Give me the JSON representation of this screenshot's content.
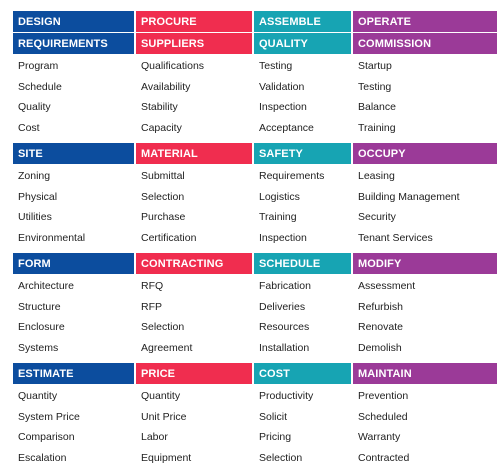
{
  "colors": {
    "design": "#0c4d9e",
    "procure": "#f02d4f",
    "assemble": "#17a4b3",
    "operate": "#9b3a98"
  },
  "columns": [
    {
      "color_key": "design",
      "blocks": [
        {
          "headers": [
            "DESIGN",
            "REQUIREMENTS"
          ],
          "items": [
            "Program",
            "Schedule",
            "Quality",
            "Cost"
          ]
        },
        {
          "headers": [
            "SITE"
          ],
          "items": [
            "Zoning",
            "Physical",
            "Utilities",
            "Environmental"
          ]
        },
        {
          "headers": [
            "FORM"
          ],
          "items": [
            "Architecture",
            "Structure",
            "Enclosure",
            "Systems"
          ]
        },
        {
          "headers": [
            "ESTIMATE"
          ],
          "items": [
            "Quantity",
            "System Price",
            "Comparison",
            "Escalation"
          ]
        }
      ]
    },
    {
      "color_key": "procure",
      "blocks": [
        {
          "headers": [
            "PROCURE",
            "SUPPLIERS"
          ],
          "items": [
            "Qualifications",
            "Availability",
            "Stability",
            "Capacity"
          ]
        },
        {
          "headers": [
            "MATERIAL"
          ],
          "items": [
            "Submittal",
            "Selection",
            "Purchase",
            "Certification"
          ]
        },
        {
          "headers": [
            "CONTRACTING"
          ],
          "items": [
            "RFQ",
            "RFP",
            "Selection",
            "Agreement"
          ]
        },
        {
          "headers": [
            "PRICE"
          ],
          "items": [
            "Quantity",
            "Unit Price",
            "Labor",
            "Equipment"
          ]
        }
      ]
    },
    {
      "color_key": "assemble",
      "blocks": [
        {
          "headers": [
            "ASSEMBLE",
            "QUALITY"
          ],
          "items": [
            "Testing",
            "Validation",
            "Inspection",
            "Acceptance"
          ]
        },
        {
          "headers": [
            "SAFETY"
          ],
          "items": [
            "Requirements",
            "Logistics",
            "Training",
            "Inspection"
          ]
        },
        {
          "headers": [
            "SCHEDULE"
          ],
          "items": [
            "Fabrication",
            "Deliveries",
            "Resources",
            "Installation"
          ]
        },
        {
          "headers": [
            "COST"
          ],
          "items": [
            "Productivity",
            "Solicit",
            "Pricing",
            "Selection"
          ]
        }
      ]
    },
    {
      "color_key": "operate",
      "blocks": [
        {
          "headers": [
            "OPERATE",
            "COMMISSION"
          ],
          "items": [
            "Startup",
            "Testing",
            "Balance",
            "Training"
          ]
        },
        {
          "headers": [
            "OCCUPY"
          ],
          "items": [
            "Leasing",
            "Building Management",
            "Security",
            "Tenant Services"
          ]
        },
        {
          "headers": [
            "MODIFY"
          ],
          "items": [
            "Assessment",
            "Refurbish",
            "Renovate",
            "Demolish"
          ]
        },
        {
          "headers": [
            "MAINTAIN"
          ],
          "items": [
            "Prevention",
            "Scheduled",
            "Warranty",
            "Contracted"
          ]
        }
      ]
    }
  ]
}
